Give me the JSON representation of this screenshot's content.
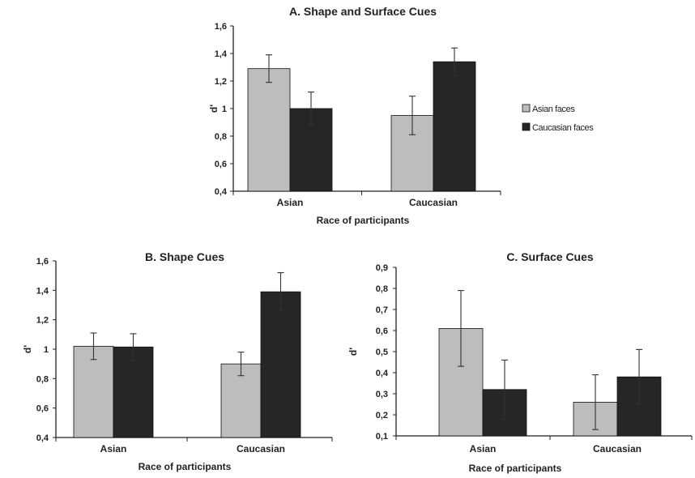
{
  "colors": {
    "asian": "#bdbdbd",
    "caucasian": "#262626",
    "axis": "#222222",
    "errorbar": "#333333"
  },
  "legend": {
    "placement": "right of chart A",
    "items": [
      "Asian faces",
      "Caucasian faces"
    ]
  },
  "chart_data": [
    {
      "type": "bar",
      "title": "A. Shape and Surface Cues",
      "xlabel": "Race of participants",
      "ylabel": "d'",
      "categories": [
        "Asian",
        "Caucasian"
      ],
      "ylim": [
        0.4,
        1.6
      ],
      "yticks": [
        "0,4",
        "0,6",
        "0,8",
        "1",
        "1,2",
        "1,4",
        "1,6"
      ],
      "series": [
        {
          "name": "Asian faces",
          "values": [
            1.29,
            0.95
          ],
          "errors": [
            0.1,
            0.14
          ]
        },
        {
          "name": "Caucasian faces",
          "values": [
            1.0,
            1.34
          ],
          "errors": [
            0.12,
            0.1
          ]
        }
      ]
    },
    {
      "type": "bar",
      "title": "B. Shape Cues",
      "xlabel": "Race of participants",
      "ylabel": "d'",
      "categories": [
        "Asian",
        "Caucasian"
      ],
      "ylim": [
        0.4,
        1.6
      ],
      "yticks": [
        "0,4",
        "0,6",
        "0,8",
        "1",
        "1,2",
        "1,4",
        "1,6"
      ],
      "series": [
        {
          "name": "Asian faces",
          "values": [
            1.02,
            0.9
          ],
          "errors": [
            0.09,
            0.08
          ]
        },
        {
          "name": "Caucasian faces",
          "values": [
            1.015,
            1.39
          ],
          "errors": [
            0.09,
            0.13
          ]
        }
      ]
    },
    {
      "type": "bar",
      "title": "C. Surface Cues",
      "xlabel": "Race of participants",
      "ylabel": "d'",
      "categories": [
        "Asian",
        "Caucasian"
      ],
      "ylim": [
        0.1,
        0.9
      ],
      "yticks": [
        "0,1",
        "0,2",
        "0,3",
        "0,4",
        "0,5",
        "0,6",
        "0,7",
        "0,8",
        "0,9"
      ],
      "series": [
        {
          "name": "Asian faces",
          "values": [
            0.61,
            0.26
          ],
          "errors": [
            0.18,
            0.13
          ]
        },
        {
          "name": "Caucasian faces",
          "values": [
            0.32,
            0.38
          ],
          "errors": [
            0.14,
            0.13
          ]
        }
      ]
    }
  ]
}
